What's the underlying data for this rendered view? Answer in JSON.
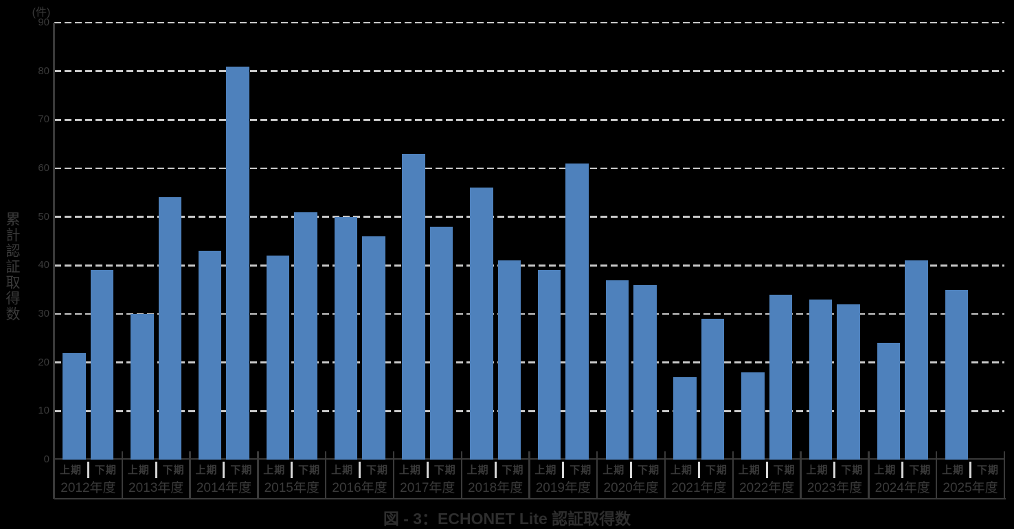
{
  "chart_data": {
    "type": "bar",
    "title": "図 - 3：ECHONET Lite 認証取得数",
    "unit_label": "(件)",
    "ylabel": "累計認証取得数",
    "ylim": [
      0,
      90
    ],
    "yticks": [
      90,
      80,
      70,
      60,
      50,
      40,
      30,
      20,
      10,
      0
    ],
    "grid": "horizontal-dashed",
    "legend_position": "none",
    "categories": [
      "2012年度",
      "2013年度",
      "2014年度",
      "2015年度",
      "2016年度",
      "2017年度",
      "2018年度",
      "2019年度",
      "2020年度",
      "2021年度",
      "2022年度",
      "2023年度",
      "2024年度",
      "2025年度"
    ],
    "period_labels": [
      "上期",
      "下期"
    ],
    "series": [
      {
        "name": "上期",
        "values": [
          22,
          30,
          43,
          42,
          50,
          63,
          56,
          39,
          37,
          17,
          18,
          33,
          24,
          35
        ]
      },
      {
        "name": "下期",
        "values": [
          39,
          54,
          81,
          51,
          46,
          48,
          41,
          61,
          36,
          29,
          34,
          32,
          41,
          null
        ]
      }
    ],
    "colors": {
      "background": "#000000",
      "bar": "#4E81BC",
      "gridline": "#c9c9c9",
      "axis": "#3a3a3a",
      "text": "#3a3a3a",
      "title_text": "#2e2e2e",
      "period_divider": "#d6d6d6"
    }
  }
}
